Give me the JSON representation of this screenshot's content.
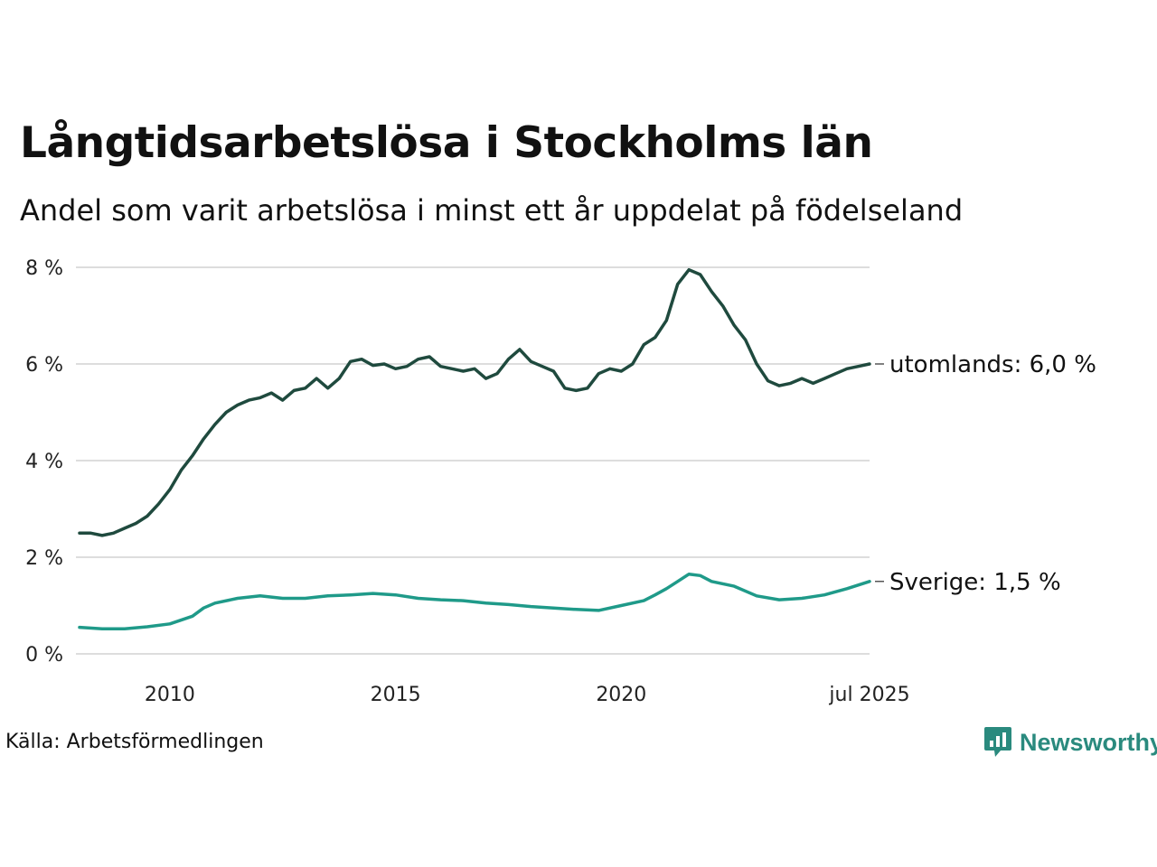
{
  "chart_data": {
    "type": "line",
    "title": "Långtidsarbetslösa i Stockholms län",
    "subtitle": "Andel som varit arbetslösa i minst ett år uppdelat på födelseland",
    "xlabel": "",
    "ylabel": "",
    "xlim": [
      2008.0,
      2025.5
    ],
    "ylim": [
      0,
      8
    ],
    "y_ticks": [
      {
        "value": 0,
        "label": "0 %"
      },
      {
        "value": 2,
        "label": "2 %"
      },
      {
        "value": 4,
        "label": "4 %"
      },
      {
        "value": 6,
        "label": "6 %"
      },
      {
        "value": 8,
        "label": "8 %"
      }
    ],
    "x_ticks": [
      {
        "value": 2010,
        "label": "2010"
      },
      {
        "value": 2015,
        "label": "2015"
      },
      {
        "value": 2020,
        "label": "2020"
      },
      {
        "value": 2025.5,
        "label": "jul 2025"
      }
    ],
    "grid": true,
    "legend": "direct labels at line ends",
    "series": [
      {
        "name": "utomlands",
        "end_label": "utomlands: 6,0 %",
        "color": "#1f4a3e",
        "points": [
          [
            2008.0,
            2.5
          ],
          [
            2008.25,
            2.5
          ],
          [
            2008.5,
            2.45
          ],
          [
            2008.75,
            2.5
          ],
          [
            2009.0,
            2.6
          ],
          [
            2009.25,
            2.7
          ],
          [
            2009.5,
            2.85
          ],
          [
            2009.75,
            3.1
          ],
          [
            2010.0,
            3.4
          ],
          [
            2010.25,
            3.8
          ],
          [
            2010.5,
            4.1
          ],
          [
            2010.75,
            4.45
          ],
          [
            2011.0,
            4.75
          ],
          [
            2011.25,
            5.0
          ],
          [
            2011.5,
            5.15
          ],
          [
            2011.75,
            5.25
          ],
          [
            2012.0,
            5.3
          ],
          [
            2012.25,
            5.4
          ],
          [
            2012.5,
            5.25
          ],
          [
            2012.75,
            5.45
          ],
          [
            2013.0,
            5.5
          ],
          [
            2013.25,
            5.7
          ],
          [
            2013.5,
            5.5
          ],
          [
            2013.75,
            5.7
          ],
          [
            2014.0,
            6.05
          ],
          [
            2014.25,
            6.1
          ],
          [
            2014.5,
            5.97
          ],
          [
            2014.75,
            6.0
          ],
          [
            2015.0,
            5.9
          ],
          [
            2015.25,
            5.95
          ],
          [
            2015.5,
            6.1
          ],
          [
            2015.75,
            6.15
          ],
          [
            2016.0,
            5.95
          ],
          [
            2016.25,
            5.9
          ],
          [
            2016.5,
            5.85
          ],
          [
            2016.75,
            5.9
          ],
          [
            2017.0,
            5.7
          ],
          [
            2017.25,
            5.8
          ],
          [
            2017.5,
            6.1
          ],
          [
            2017.75,
            6.3
          ],
          [
            2018.0,
            6.05
          ],
          [
            2018.25,
            5.95
          ],
          [
            2018.5,
            5.85
          ],
          [
            2018.75,
            5.5
          ],
          [
            2019.0,
            5.45
          ],
          [
            2019.25,
            5.5
          ],
          [
            2019.5,
            5.8
          ],
          [
            2019.75,
            5.9
          ],
          [
            2020.0,
            5.85
          ],
          [
            2020.25,
            6.0
          ],
          [
            2020.5,
            6.4
          ],
          [
            2020.75,
            6.55
          ],
          [
            2021.0,
            6.9
          ],
          [
            2021.25,
            7.65
          ],
          [
            2021.5,
            7.95
          ],
          [
            2021.75,
            7.85
          ],
          [
            2022.0,
            7.5
          ],
          [
            2022.25,
            7.2
          ],
          [
            2022.5,
            6.8
          ],
          [
            2022.75,
            6.5
          ],
          [
            2023.0,
            6.0
          ],
          [
            2023.25,
            5.65
          ],
          [
            2023.5,
            5.55
          ],
          [
            2023.75,
            5.6
          ],
          [
            2024.0,
            5.7
          ],
          [
            2024.25,
            5.6
          ],
          [
            2024.5,
            5.7
          ],
          [
            2024.75,
            5.8
          ],
          [
            2025.0,
            5.9
          ],
          [
            2025.25,
            5.95
          ],
          [
            2025.5,
            6.0
          ]
        ]
      },
      {
        "name": "Sverige",
        "end_label": "Sverige: 1,5 %",
        "color": "#1f9a89",
        "points": [
          [
            2008.0,
            0.55
          ],
          [
            2008.5,
            0.52
          ],
          [
            2009.0,
            0.52
          ],
          [
            2009.5,
            0.56
          ],
          [
            2010.0,
            0.62
          ],
          [
            2010.5,
            0.78
          ],
          [
            2010.75,
            0.95
          ],
          [
            2011.0,
            1.05
          ],
          [
            2011.5,
            1.15
          ],
          [
            2012.0,
            1.2
          ],
          [
            2012.5,
            1.15
          ],
          [
            2013.0,
            1.15
          ],
          [
            2013.5,
            1.2
          ],
          [
            2014.0,
            1.22
          ],
          [
            2014.5,
            1.25
          ],
          [
            2015.0,
            1.22
          ],
          [
            2015.5,
            1.15
          ],
          [
            2016.0,
            1.12
          ],
          [
            2016.5,
            1.1
          ],
          [
            2017.0,
            1.05
          ],
          [
            2017.5,
            1.02
          ],
          [
            2018.0,
            0.98
          ],
          [
            2018.5,
            0.95
          ],
          [
            2019.0,
            0.92
          ],
          [
            2019.5,
            0.9
          ],
          [
            2020.0,
            1.0
          ],
          [
            2020.5,
            1.1
          ],
          [
            2020.75,
            1.22
          ],
          [
            2021.0,
            1.35
          ],
          [
            2021.25,
            1.5
          ],
          [
            2021.5,
            1.65
          ],
          [
            2021.75,
            1.62
          ],
          [
            2022.0,
            1.5
          ],
          [
            2022.5,
            1.4
          ],
          [
            2023.0,
            1.2
          ],
          [
            2023.5,
            1.12
          ],
          [
            2024.0,
            1.15
          ],
          [
            2024.5,
            1.22
          ],
          [
            2025.0,
            1.35
          ],
          [
            2025.5,
            1.5
          ]
        ]
      }
    ]
  },
  "footer": {
    "source": "Källa: Arbetsförmedlingen",
    "brand": "Newsworthy",
    "brand_color": "#2a8a7e"
  }
}
